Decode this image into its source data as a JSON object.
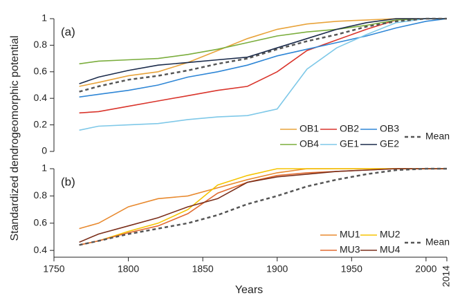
{
  "chart_data": [
    {
      "type": "line",
      "panel_label": "(a)",
      "ylabel": "Standardized dendrogeomorphic potential",
      "x": [
        1767,
        1780,
        1800,
        1820,
        1840,
        1860,
        1880,
        1900,
        1920,
        1940,
        1960,
        1980,
        2000,
        2014
      ],
      "xlim": [
        1750,
        2014
      ],
      "ylim": [
        0,
        1
      ],
      "yticks": [
        0,
        0.2,
        0.4,
        0.6,
        0.8,
        1
      ],
      "series": [
        {
          "name": "OB1",
          "color": "#e8a33a",
          "values": [
            0.49,
            0.52,
            0.57,
            0.6,
            0.67,
            0.76,
            0.85,
            0.92,
            0.96,
            0.98,
            0.99,
            1,
            1,
            1
          ]
        },
        {
          "name": "OB2",
          "color": "#d9342b",
          "values": [
            0.29,
            0.3,
            0.34,
            0.38,
            0.42,
            0.46,
            0.49,
            0.6,
            0.76,
            0.84,
            0.92,
            0.99,
            1,
            1
          ]
        },
        {
          "name": "OB3",
          "color": "#2e86d6",
          "values": [
            0.41,
            0.43,
            0.46,
            0.5,
            0.56,
            0.6,
            0.65,
            0.72,
            0.77,
            0.82,
            0.87,
            0.93,
            0.98,
            1
          ]
        },
        {
          "name": "OB4",
          "color": "#7aad3c",
          "values": [
            0.66,
            0.68,
            0.69,
            0.7,
            0.73,
            0.77,
            0.82,
            0.87,
            0.9,
            0.92,
            0.95,
            0.99,
            1,
            1
          ]
        },
        {
          "name": "GE1",
          "color": "#7ec8e8",
          "values": [
            0.16,
            0.19,
            0.2,
            0.21,
            0.24,
            0.26,
            0.27,
            0.32,
            0.62,
            0.78,
            0.88,
            0.97,
            1,
            1
          ]
        },
        {
          "name": "GE2",
          "color": "#1a2a4a",
          "values": [
            0.51,
            0.56,
            0.61,
            0.65,
            0.67,
            0.69,
            0.71,
            0.78,
            0.85,
            0.92,
            0.97,
            1,
            1,
            1
          ]
        },
        {
          "name": "Mean",
          "color": "#555555",
          "linestyle": "dashed",
          "values": [
            0.45,
            0.49,
            0.54,
            0.57,
            0.61,
            0.66,
            0.7,
            0.77,
            0.83,
            0.88,
            0.94,
            0.98,
            1,
            1
          ]
        }
      ]
    },
    {
      "type": "line",
      "panel_label": "(b)",
      "xlabel": "Years",
      "x": [
        1767,
        1780,
        1800,
        1820,
        1840,
        1860,
        1880,
        1900,
        1920,
        1940,
        1960,
        1980,
        2000,
        2014
      ],
      "xlim": [
        1750,
        2014
      ],
      "xticks": [
        1750,
        1800,
        1850,
        1900,
        1950,
        2000,
        2014
      ],
      "ylim": [
        0.35,
        1
      ],
      "yticks": [
        0.4,
        0.6,
        0.8,
        1
      ],
      "series": [
        {
          "name": "MU1",
          "color": "#e8892e",
          "values": [
            0.56,
            0.6,
            0.72,
            0.78,
            0.8,
            0.86,
            0.92,
            0.97,
            1,
            1,
            1,
            1,
            1,
            1
          ]
        },
        {
          "name": "MU2",
          "color": "#f5c400",
          "values": [
            0.44,
            0.47,
            0.54,
            0.6,
            0.7,
            0.88,
            0.95,
            1,
            1,
            1,
            1,
            1,
            1,
            1
          ]
        },
        {
          "name": "MU3",
          "color": "#e06a30",
          "values": [
            0.44,
            0.47,
            0.53,
            0.58,
            0.67,
            0.82,
            0.9,
            0.95,
            0.97,
            0.98,
            0.99,
            1,
            1,
            1
          ]
        },
        {
          "name": "MU4",
          "color": "#7a2e1a",
          "values": [
            0.46,
            0.52,
            0.58,
            0.64,
            0.72,
            0.78,
            0.9,
            0.94,
            0.96,
            0.98,
            0.99,
            1,
            1,
            1
          ]
        },
        {
          "name": "Mean",
          "color": "#555555",
          "linestyle": "dashed",
          "values": [
            0.44,
            0.47,
            0.52,
            0.56,
            0.6,
            0.66,
            0.74,
            0.8,
            0.87,
            0.92,
            0.96,
            0.99,
            1,
            1
          ]
        }
      ]
    }
  ]
}
